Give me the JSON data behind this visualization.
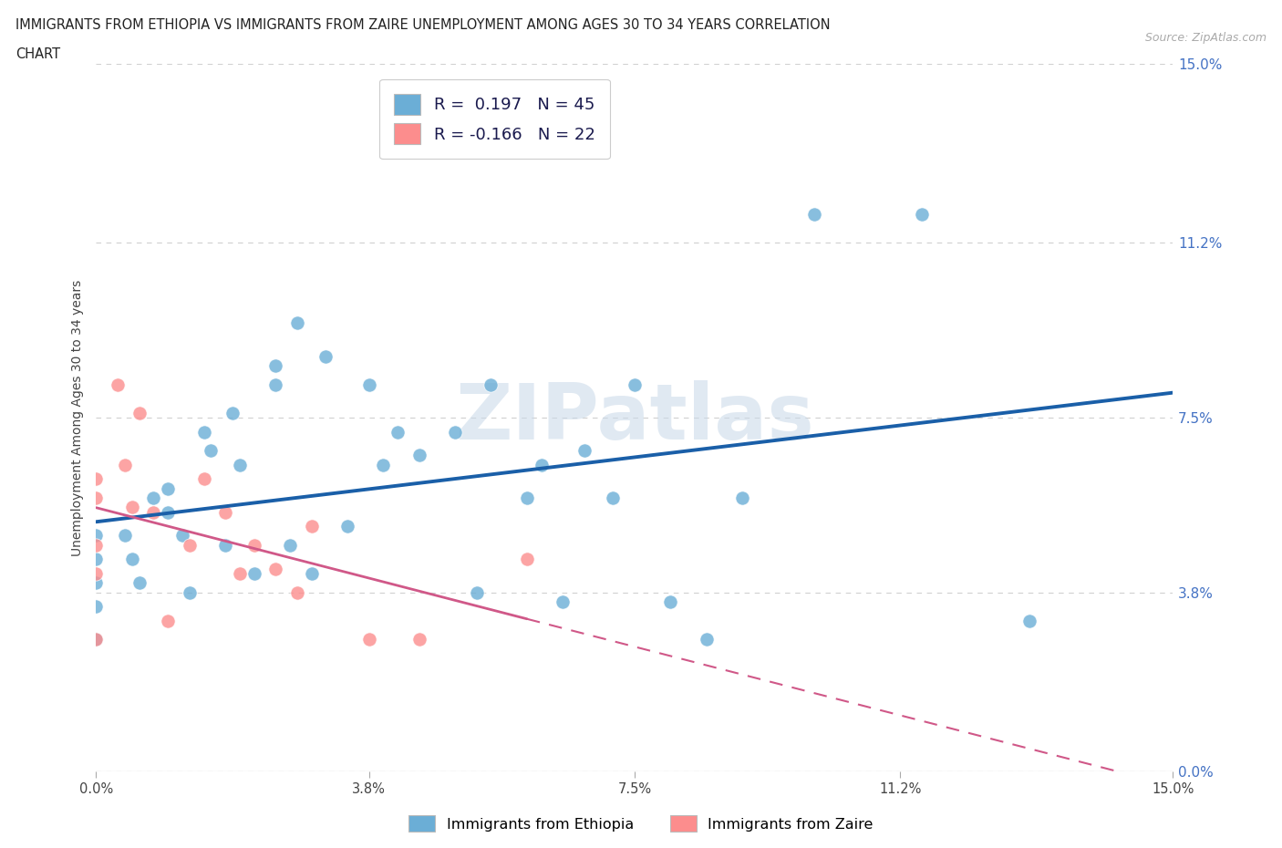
{
  "title_line1": "IMMIGRANTS FROM ETHIOPIA VS IMMIGRANTS FROM ZAIRE UNEMPLOYMENT AMONG AGES 30 TO 34 YEARS CORRELATION",
  "title_line2": "CHART",
  "source_text": "Source: ZipAtlas.com",
  "ylabel": "Unemployment Among Ages 30 to 34 years",
  "xlim": [
    0.0,
    0.15
  ],
  "ylim": [
    0.0,
    0.15
  ],
  "ytick_values": [
    0.0,
    0.038,
    0.075,
    0.112,
    0.15
  ],
  "xtick_values": [
    0.0,
    0.038,
    0.075,
    0.112,
    0.15
  ],
  "ethiopia_color": "#6baed6",
  "zaire_color": "#fc8d8d",
  "ethiopia_R": 0.197,
  "ethiopia_N": 45,
  "zaire_R": -0.166,
  "zaire_N": 22,
  "ethiopia_x": [
    0.0,
    0.0,
    0.0,
    0.0,
    0.0,
    0.004,
    0.005,
    0.006,
    0.008,
    0.01,
    0.01,
    0.012,
    0.013,
    0.015,
    0.016,
    0.018,
    0.019,
    0.02,
    0.022,
    0.025,
    0.025,
    0.027,
    0.028,
    0.03,
    0.032,
    0.035,
    0.038,
    0.04,
    0.042,
    0.045,
    0.05,
    0.053,
    0.055,
    0.06,
    0.062,
    0.065,
    0.068,
    0.072,
    0.075,
    0.08,
    0.085,
    0.09,
    0.1,
    0.115,
    0.13
  ],
  "ethiopia_y": [
    0.05,
    0.045,
    0.04,
    0.035,
    0.028,
    0.05,
    0.045,
    0.04,
    0.058,
    0.06,
    0.055,
    0.05,
    0.038,
    0.072,
    0.068,
    0.048,
    0.076,
    0.065,
    0.042,
    0.086,
    0.082,
    0.048,
    0.095,
    0.042,
    0.088,
    0.052,
    0.082,
    0.065,
    0.072,
    0.067,
    0.072,
    0.038,
    0.082,
    0.058,
    0.065,
    0.036,
    0.068,
    0.058,
    0.082,
    0.036,
    0.028,
    0.058,
    0.118,
    0.118,
    0.032
  ],
  "zaire_x": [
    0.0,
    0.0,
    0.0,
    0.0,
    0.0,
    0.003,
    0.004,
    0.005,
    0.006,
    0.008,
    0.01,
    0.013,
    0.015,
    0.018,
    0.02,
    0.022,
    0.025,
    0.028,
    0.03,
    0.038,
    0.045,
    0.06
  ],
  "zaire_y": [
    0.062,
    0.058,
    0.048,
    0.042,
    0.028,
    0.082,
    0.065,
    0.056,
    0.076,
    0.055,
    0.032,
    0.048,
    0.062,
    0.055,
    0.042,
    0.048,
    0.043,
    0.038,
    0.052,
    0.028,
    0.028,
    0.045
  ],
  "watermark": "ZIPatlas",
  "background_color": "#ffffff",
  "grid_color": "#d0d0d0",
  "trend_blue_color": "#1a5fa8",
  "trend_pink_color": "#d05888",
  "legend_label_ethiopia": "Immigrants from Ethiopia",
  "legend_label_zaire": "Immigrants from Zaire",
  "title_color": "#222222",
  "source_color": "#aaaaaa",
  "ylabel_color": "#444444",
  "right_tick_color": "#4472c4",
  "bottom_tick_color": "#444444"
}
